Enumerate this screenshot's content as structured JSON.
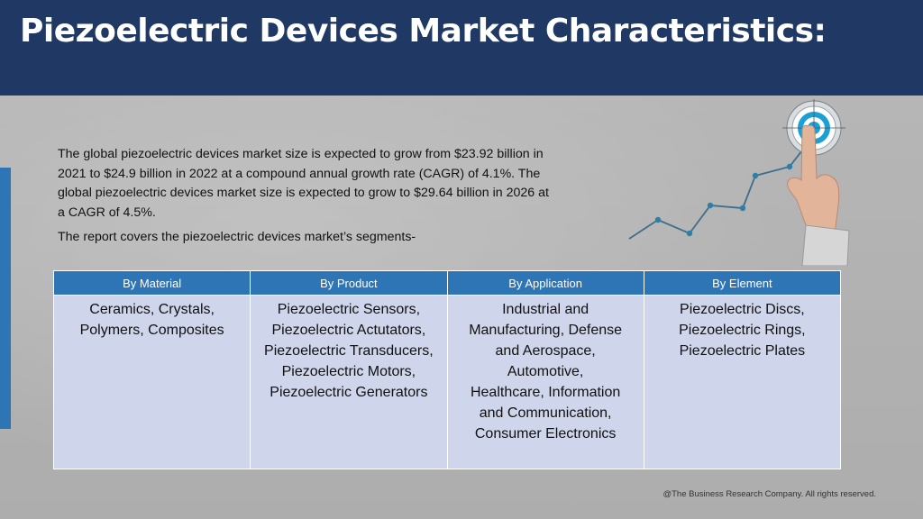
{
  "header": {
    "title": "Piezoelectric Devices Market Characteristics:"
  },
  "intro": {
    "lines": [
      "The global piezoelectric devices market size is expected to grow from $23.92 billion in",
      "2021 to $24.9 billion in 2022 at a compound annual growth rate (CAGR) of 4.1%. The",
      "global piezoelectric devices market size is expected to grow to $29.64 billion in 2026 at",
      "a CAGR of 4.5%."
    ],
    "segments_line": "The report covers the piezoelectric devices market’s segments-"
  },
  "table": {
    "columns": [
      {
        "header": "By Material",
        "lines": [
          "Ceramics, Crystals,",
          "Polymers, Composites"
        ]
      },
      {
        "header": "By Product",
        "lines": [
          "Piezoelectric Sensors,",
          "Piezoelectric Actutators,",
          "Piezoelectric Transducers,",
          "Piezoelectric Motors,",
          "Piezoelectric Generators"
        ]
      },
      {
        "header": "By Application",
        "lines": [
          "Industrial and",
          "Manufacturing, Defense",
          "and Aerospace,",
          "Automotive,",
          "Healthcare, Information",
          "and Communication,",
          "Consumer Electronics"
        ]
      },
      {
        "header": "By Element",
        "lines": [
          "Piezoelectric Discs,",
          "Piezoelectric Rings,",
          "Piezoelectric Plates"
        ]
      }
    ]
  },
  "footer": {
    "copyright": "@The Business Research Company. All rights reserved."
  },
  "graphic": {
    "icon": "target-touch-growth-icon",
    "line_color": "#3d6e8c",
    "target_color": "#1a9fd6"
  },
  "colors": {
    "header_bg": "#1f3864",
    "accent": "#2e75b6",
    "cell_bg": "#cfd5ea"
  }
}
